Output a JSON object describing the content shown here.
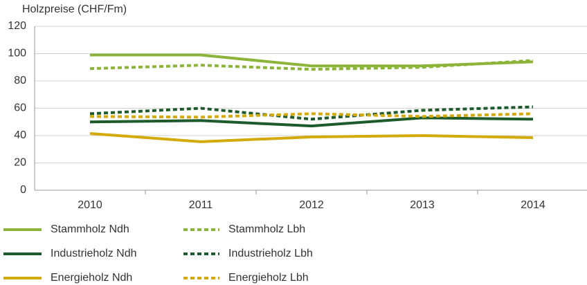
{
  "chart_data": {
    "type": "line",
    "y_axis_label": "Holzpreise (CHF/Fm)",
    "categories": [
      "2010",
      "2011",
      "2012",
      "2013",
      "2014"
    ],
    "ylim": [
      0,
      120
    ],
    "yticks": [
      0,
      20,
      40,
      60,
      80,
      100,
      120
    ],
    "grid": true,
    "series": [
      {
        "name": "Stammholz Ndh",
        "color": "#8cb43a",
        "dash": "solid",
        "values": [
          99,
          99,
          91,
          91,
          94
        ]
      },
      {
        "name": "Stammholz Lbh",
        "color": "#8cb43a",
        "dash": "dotted",
        "values": [
          89,
          91.5,
          88.5,
          90,
          95
        ]
      },
      {
        "name": "Industrieholz Ndh",
        "color": "#1d5a2c",
        "dash": "solid",
        "values": [
          50,
          51,
          47,
          53,
          52
        ]
      },
      {
        "name": "Industrieholz Lbh",
        "color": "#1d5a2c",
        "dash": "dotted",
        "values": [
          56,
          60,
          52,
          58.5,
          61
        ]
      },
      {
        "name": "Energieholz Ndh",
        "color": "#d4aa0a",
        "dash": "solid",
        "values": [
          41.5,
          35.5,
          39,
          40,
          38.5
        ]
      },
      {
        "name": "Energieholz Lbh",
        "color": "#d4aa0a",
        "dash": "dotted",
        "values": [
          54,
          53.5,
          56,
          54,
          56
        ]
      }
    ]
  }
}
